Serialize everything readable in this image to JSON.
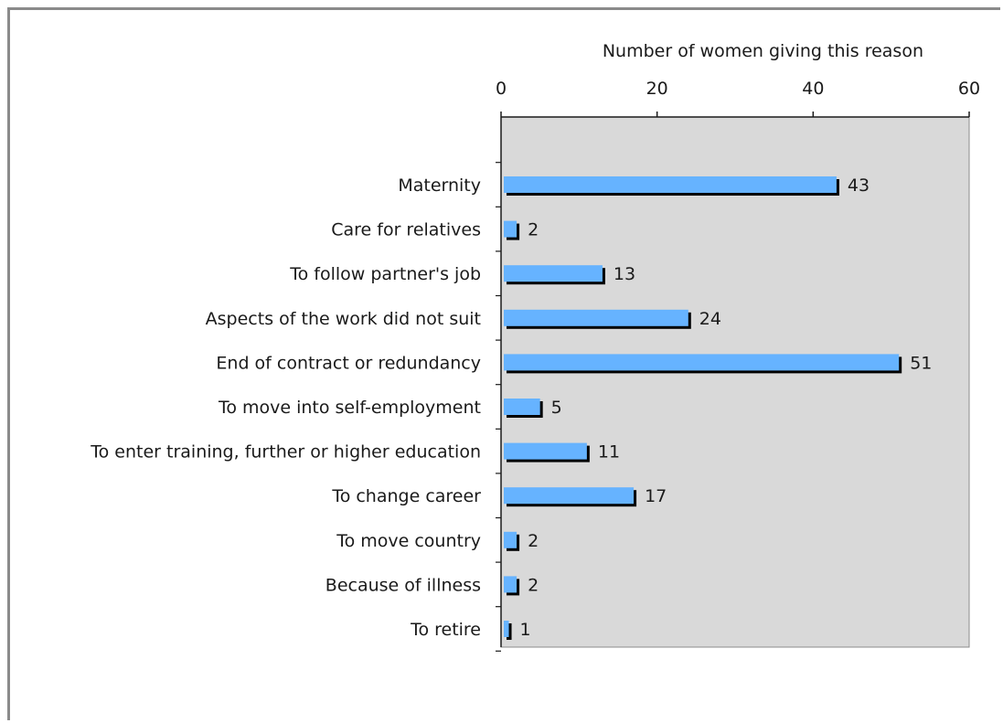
{
  "chart_data": {
    "type": "bar",
    "orientation": "horizontal",
    "title": "",
    "xlabel": "Number of women giving this reason",
    "ylabel": "",
    "xlim": [
      0,
      60
    ],
    "x_ticks": [
      "0",
      "20",
      "40",
      "60"
    ],
    "grid": false,
    "legend": "none",
    "categories": [
      "Maternity",
      "Care for relatives",
      "To follow partner's job",
      "Aspects of the work did not suit",
      "End of contract or redundancy",
      "To move into self-employment",
      "To enter training, further or higher education",
      "To change career",
      "To move country",
      "Because of illness",
      "To retire"
    ],
    "values": [
      43,
      2,
      13,
      24,
      51,
      5,
      11,
      17,
      2,
      2,
      1
    ],
    "colors": {
      "bar": "#66b3ff",
      "bar_shadow": "#000000",
      "plot_background": "#d9d9d9"
    }
  }
}
